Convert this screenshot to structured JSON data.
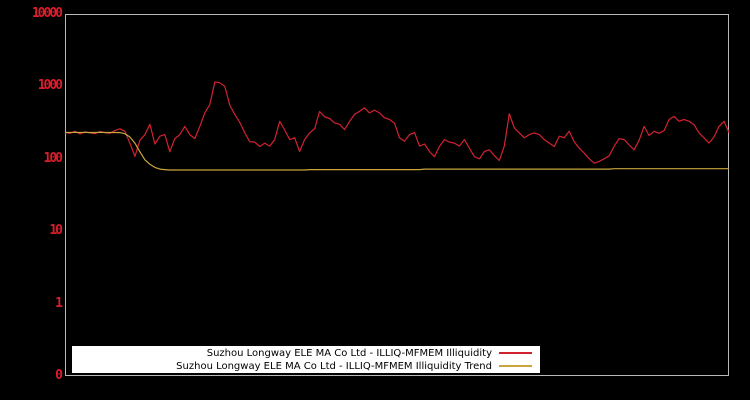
{
  "figure": {
    "background_color": "#000000",
    "plot_border_color": "#b9b9b9",
    "tick_label_color": "#dd1d2c"
  },
  "chart_data": {
    "type": "line",
    "title": "",
    "xlabel": "",
    "ylabel": "",
    "yscale": "log",
    "ylim": [
      0.1,
      10000
    ],
    "grid": false,
    "legend_position": "lower center",
    "x_axis_tick_labels": [],
    "yticks": [
      {
        "value": 10000,
        "label": "10000"
      },
      {
        "value": 1000,
        "label": "1000"
      },
      {
        "value": 100,
        "label": "100"
      },
      {
        "value": 10,
        "label": "10"
      },
      {
        "value": 1,
        "label": "1"
      },
      {
        "value": 0.1,
        "label": "0"
      }
    ],
    "series": [
      {
        "name": "Suzhou Longway ELE MA Co Ltd - ILLIQ-MFMEM Illiquidity",
        "color": "#d22230",
        "data_name": "illiquidity-line",
        "values": [
          230,
          225,
          240,
          220,
          235,
          228,
          222,
          238,
          230,
          225,
          245,
          260,
          240,
          165,
          108,
          180,
          216,
          300,
          160,
          205,
          216,
          125,
          190,
          216,
          280,
          216,
          190,
          280,
          430,
          560,
          1150,
          1120,
          1000,
          550,
          410,
          320,
          230,
          172,
          170,
          148,
          165,
          150,
          184,
          330,
          250,
          184,
          195,
          126,
          184,
          228,
          260,
          450,
          380,
          360,
          313,
          300,
          253,
          330,
          410,
          455,
          505,
          430,
          470,
          430,
          368,
          349,
          310,
          195,
          175,
          216,
          230,
          150,
          160,
          126,
          107,
          148,
          184,
          170,
          165,
          150,
          184,
          140,
          107,
          100,
          126,
          133,
          110,
          95,
          150,
          420,
          267,
          228,
          195,
          216,
          228,
          216,
          184,
          165,
          148,
          205,
          195,
          240,
          172,
          140,
          120,
          100,
          87,
          92,
          100,
          110,
          150,
          190,
          184,
          155,
          133,
          180,
          280,
          210,
          240,
          225,
          245,
          349,
          385,
          330,
          349,
          330,
          295,
          228,
          195,
          165,
          200,
          280,
          330,
          230
        ]
      },
      {
        "name": "Suzhou Longway ELE MA Co Ltd - ILLIQ-MFMEM Illiquidity Trend",
        "color": "#c9a53c",
        "data_name": "illiquidity-trend-line",
        "values": [
          232,
          231,
          232,
          231,
          232,
          231,
          231,
          232,
          231,
          231,
          231,
          230,
          222,
          200,
          165,
          125,
          97,
          84,
          76,
          72,
          71,
          70,
          70,
          70,
          70,
          70,
          70,
          70,
          70,
          70,
          70,
          70,
          70,
          70,
          70,
          70,
          70,
          70,
          70,
          70,
          70,
          70,
          70,
          70,
          70,
          70,
          70,
          70,
          70,
          71,
          71,
          71,
          71,
          71,
          71,
          71,
          71,
          71,
          71,
          71,
          71,
          71,
          71,
          71,
          71,
          71,
          71,
          71,
          71,
          71,
          71,
          71,
          72,
          72,
          72,
          72,
          72,
          72,
          72,
          72,
          72,
          72,
          72,
          72,
          72,
          72,
          72,
          72,
          72,
          72,
          72,
          72,
          72,
          72,
          72,
          72,
          72,
          72,
          72,
          72,
          72,
          72,
          72,
          72,
          72,
          72,
          72,
          72,
          72,
          72,
          73,
          73,
          73,
          73,
          73,
          73,
          73,
          73,
          73,
          73,
          73,
          73,
          73,
          73,
          73,
          73,
          73,
          73,
          73,
          73,
          73,
          73,
          73,
          73
        ]
      }
    ]
  }
}
